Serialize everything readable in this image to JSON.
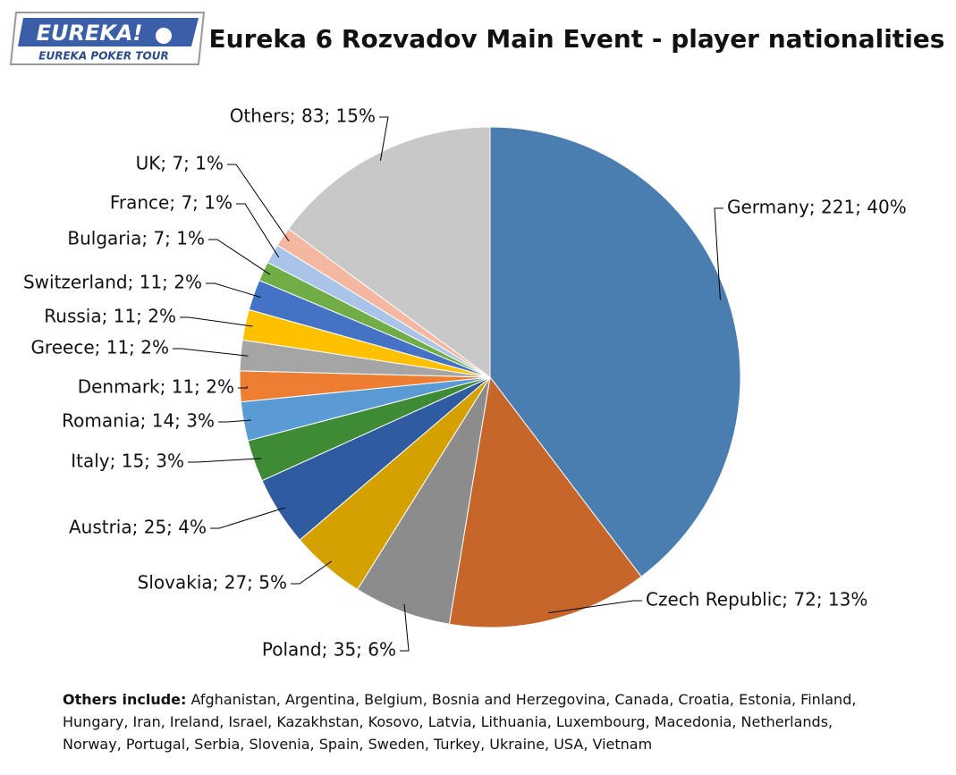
{
  "logo": {
    "brand": "EUREKA!",
    "tagline": "EUREKA POKER TOUR"
  },
  "chart_data": {
    "type": "pie",
    "title": "Eureka 6 Rozvadov Main Event - player nationalities",
    "values": [
      221,
      72,
      35,
      27,
      25,
      15,
      14,
      11,
      11,
      11,
      11,
      7,
      7,
      7,
      83
    ],
    "value_labels": [
      "Germany; 221; 40%",
      "Czech Republic; 72; 13%",
      "Poland; 35; 6%",
      "Slovakia; 27; 5%",
      "Austria; 25; 4%",
      "Italy; 15; 3%",
      "Romania; 14; 3%",
      "Denmark; 11; 2%",
      "Greece; 11; 2%",
      "Russia; 11; 2%",
      "Switzerland; 11; 2%",
      "Bulgaria; 7; 1%",
      "France; 7; 1%",
      "UK; 7; 1%",
      "Others; 83; 15%"
    ],
    "colors": [
      "#4a7eb0",
      "#c6662a",
      "#8c8c8c",
      "#d4a100",
      "#2f5ca0",
      "#3f8a35",
      "#5b9bd5",
      "#ed7d31",
      "#a5a5a5",
      "#ffc000",
      "#4472c4",
      "#70ad47",
      "#a9c4e8",
      "#f4b8a0",
      "#c8c8c8"
    ],
    "footnote": {
      "heading": "Others include:",
      "lines": [
        "Afghanistan,  Argentina,  Belgium,  Bosnia and Herzegovina,  Canada,  Croatia,  Estonia,  Finland,",
        "Hungary,  Iran,  Ireland,  Israel,  Kazakhstan,  Kosovo,  Latvia,  Lithuania,  Luxembourg,  Macedonia,  Netherlands,",
        "Norway,  Portugal,  Serbia,  Slovenia,  Spain,  Sweden,  Turkey,  Ukraine,  USA,  Vietnam"
      ]
    }
  }
}
